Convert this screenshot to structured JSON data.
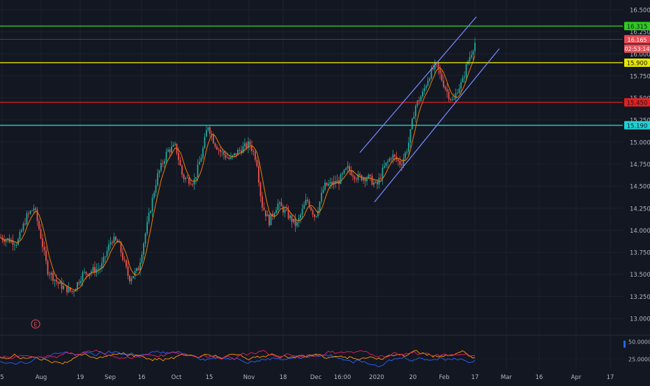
{
  "chart_data": {
    "type": "candlestick",
    "instrument": "",
    "y_axis": {
      "min": 12.85,
      "max": 16.55,
      "ticks": [
        "16.500",
        "16.250",
        "16.000",
        "15.750",
        "15.500",
        "15.250",
        "15.000",
        "14.750",
        "14.500",
        "14.250",
        "14.000",
        "13.750",
        "13.500",
        "13.250",
        "13.000"
      ]
    },
    "x_axis": {
      "labels": [
        "5",
        "Aug",
        "19",
        "Sep",
        "16",
        "Oct",
        "15",
        "Nov",
        "18",
        "Dec",
        "16:00",
        "2020",
        "20",
        "Feb",
        "17",
        "Mar",
        "16",
        "Apr",
        "17"
      ]
    },
    "horizontal_levels": [
      {
        "value": 16.315,
        "label": "16.315",
        "color": "#2ecc1f"
      },
      {
        "value": 15.9,
        "label": "15.900",
        "color": "#e6e600"
      },
      {
        "value": 15.45,
        "label": "15.450",
        "color": "#e02020"
      },
      {
        "value": 15.19,
        "label": "15.190",
        "color": "#1fd1d1"
      }
    ],
    "price_tags": [
      {
        "value": 16.165,
        "label": "16.165",
        "color": "#e84d55"
      },
      {
        "value": 16.06,
        "label": "02:53:14",
        "color": "#e84d55"
      }
    ],
    "channel_lines": [
      {
        "from": [
          "Dec 19",
          14.88
        ],
        "to": [
          "Feb 19",
          16.42
        ]
      },
      {
        "from": [
          "Dec 23",
          14.32
        ],
        "to": [
          "Feb 22",
          16.06
        ]
      }
    ],
    "event_marker": "E",
    "indicator": {
      "ticks": [
        "50.0000",
        "25.0000"
      ],
      "series_colors": [
        "#2962ff",
        "#ff9800",
        "#e91e63"
      ]
    },
    "colors": {
      "up": "#26a69a",
      "down": "#ef5350",
      "ma": "#f57c00",
      "channel": "#7b8cff",
      "background": "#131722"
    }
  }
}
